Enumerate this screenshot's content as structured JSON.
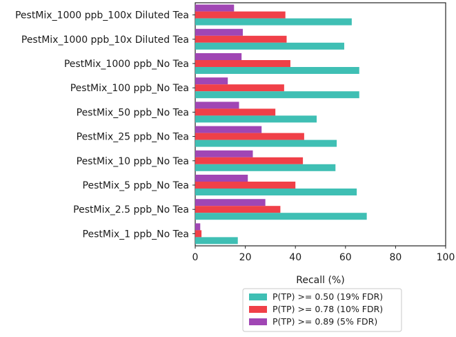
{
  "chart_data": {
    "type": "bar",
    "orientation": "horizontal",
    "title": "",
    "xlabel": "Recall (%)",
    "ylabel": "",
    "xlim": [
      0,
      100
    ],
    "xticks": [
      0,
      20,
      40,
      60,
      80,
      100
    ],
    "grid": false,
    "legend_position": "bottom",
    "categories": [
      "PestMix_1000 ppb_100x Diluted Tea",
      "PestMix_1000 ppb_10x Diluted Tea",
      "PestMix_1000 ppb_No Tea",
      "PestMix_100 ppb_No Tea",
      "PestMix_50 ppb_No Tea",
      "PestMix_25 ppb_No Tea",
      "PestMix_10 ppb_No Tea",
      "PestMix_5 ppb_No Tea",
      "PestMix_2.5 ppb_No Tea",
      "PestMix_1 ppb_No Tea"
    ],
    "series": [
      {
        "name": "P(TP) >= 0.50 (19% FDR)",
        "color": "#3fbfb4",
        "values": [
          62.5,
          59.5,
          65.5,
          65.5,
          48.5,
          56.5,
          56.0,
          64.5,
          68.5,
          17.0
        ]
      },
      {
        "name": "P(TP) >= 0.78 (10% FDR)",
        "color": "#f04048",
        "values": [
          36.0,
          36.5,
          38.0,
          35.5,
          32.0,
          43.5,
          43.0,
          40.0,
          34.0,
          2.5
        ]
      },
      {
        "name": "P(TP) >= 0.89 (5% FDR)",
        "color": "#a046b4",
        "values": [
          15.5,
          19.0,
          18.5,
          13.0,
          17.5,
          26.5,
          23.0,
          21.0,
          28.0,
          2.0
        ]
      }
    ]
  }
}
